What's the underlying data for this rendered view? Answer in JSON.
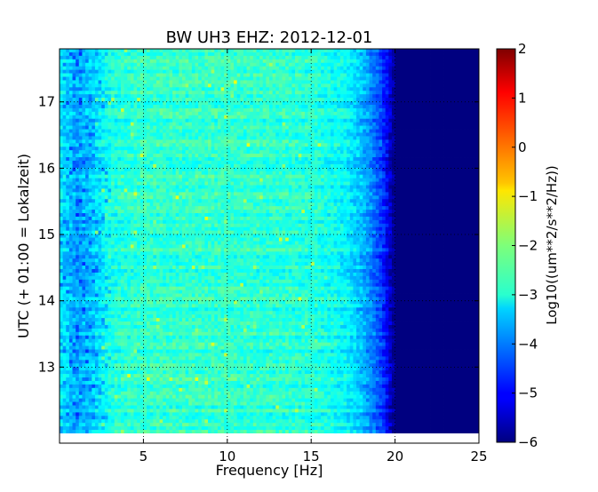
{
  "chart_data": {
    "type": "heatmap",
    "title": "BW UH3 EHZ: 2012-12-01",
    "xlabel": "Frequency [Hz]",
    "ylabel": "UTC (+ 01:00 = Lokalzeit)",
    "xlim": [
      0,
      25
    ],
    "ylim": [
      17.8,
      12.0
    ],
    "x_ticks": [
      "5",
      "10",
      "15",
      "20",
      "25"
    ],
    "y_ticks": [
      "13",
      "14",
      "15",
      "16",
      "17"
    ],
    "grid": true,
    "colormap": "jet",
    "colorbar": {
      "label": "Log10((um**2/s**2/Hz))",
      "range": [
        -6,
        2
      ],
      "ticks": [
        "2",
        "1",
        "0",
        "−1",
        "−2",
        "−3",
        "−4",
        "−5",
        "−6"
      ]
    },
    "profile_description_freq": [
      0,
      1,
      2,
      3,
      5,
      10,
      15,
      17,
      18,
      19,
      19.5,
      20,
      25
    ],
    "profile_values_log10": [
      -3.1,
      -3.7,
      -3.4,
      -2.8,
      -2.6,
      -2.6,
      -2.7,
      -3.0,
      -3.5,
      -4.3,
      -5.0,
      -6.0,
      -6.0
    ]
  }
}
